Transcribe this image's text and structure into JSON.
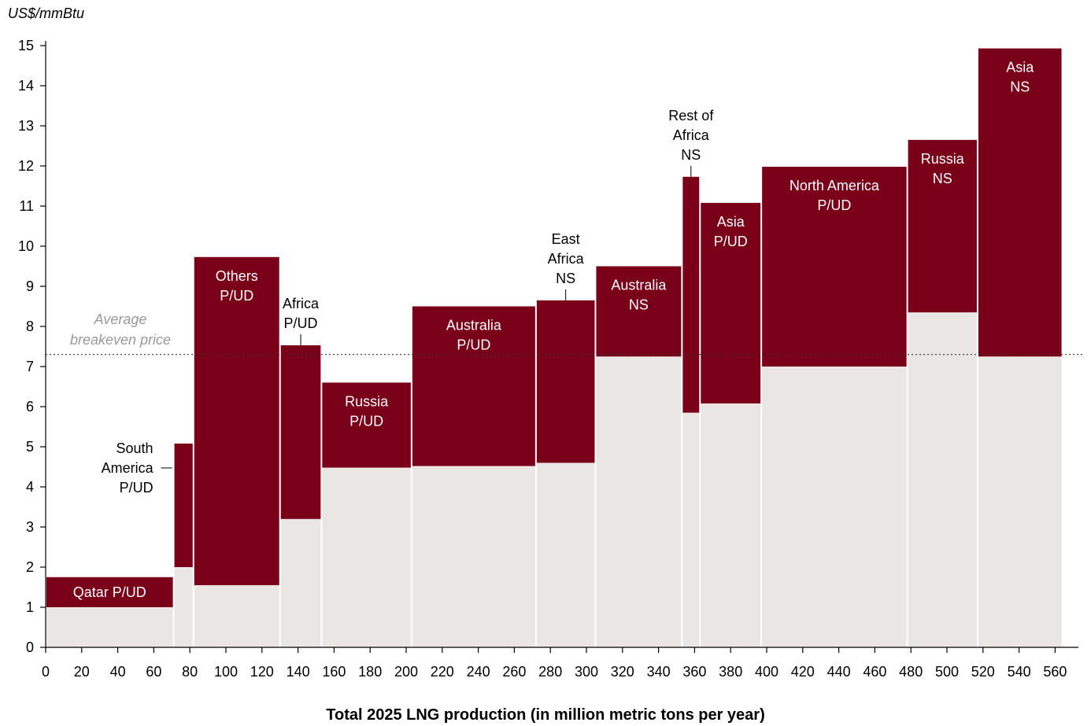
{
  "chart_data": {
    "type": "bar",
    "title": "",
    "ylabel": "US$/mmBtu",
    "xlabel": "Total 2025 LNG production (in million metric tons per year)",
    "xlim": [
      0,
      565
    ],
    "ylim": [
      0,
      15
    ],
    "xticks": [
      0,
      20,
      40,
      60,
      80,
      100,
      120,
      140,
      160,
      180,
      200,
      220,
      240,
      260,
      280,
      300,
      320,
      340,
      360,
      380,
      400,
      420,
      440,
      460,
      480,
      500,
      520,
      540,
      560
    ],
    "yticks": [
      0,
      1,
      2,
      3,
      4,
      5,
      6,
      7,
      8,
      9,
      10,
      11,
      12,
      13,
      14,
      15
    ],
    "grid": false,
    "reference_line": {
      "value": 7.3,
      "label_lines": [
        "Average",
        "breakeven price"
      ]
    },
    "colors": {
      "upper": "#7a0019",
      "lower": "#e9e6e3",
      "reference": "#333333",
      "reference_label": "#999999"
    },
    "bars": [
      {
        "x0": 0,
        "x1": 71,
        "base": 1.0,
        "top": 1.75,
        "label": [
          "Qatar P/UD"
        ],
        "label_pos": "inside"
      },
      {
        "x0": 71,
        "x1": 82,
        "base": 2.0,
        "top": 5.08,
        "label": [
          "South",
          "America",
          "P/UD"
        ],
        "label_pos": "left"
      },
      {
        "x0": 82,
        "x1": 130,
        "base": 1.55,
        "top": 9.73,
        "label": [
          "Others",
          "P/UD"
        ],
        "label_pos": "inside"
      },
      {
        "x0": 130,
        "x1": 153,
        "base": 3.2,
        "top": 7.53,
        "label": [
          "Africa",
          "P/UD"
        ],
        "label_pos": "above"
      },
      {
        "x0": 153,
        "x1": 203,
        "base": 4.48,
        "top": 6.6,
        "label": [
          "Russia",
          "P/UD"
        ],
        "label_pos": "inside"
      },
      {
        "x0": 203,
        "x1": 272,
        "base": 4.52,
        "top": 8.5,
        "label": [
          "Australia",
          "P/UD"
        ],
        "label_pos": "inside"
      },
      {
        "x0": 272,
        "x1": 305,
        "base": 4.6,
        "top": 8.65,
        "label": [
          "East",
          "Africa",
          "NS"
        ],
        "label_pos": "above"
      },
      {
        "x0": 305,
        "x1": 353,
        "base": 7.25,
        "top": 9.5,
        "label": [
          "Australia",
          "NS"
        ],
        "label_pos": "inside"
      },
      {
        "x0": 353,
        "x1": 363,
        "base": 5.85,
        "top": 11.73,
        "label": [
          "Rest of",
          "Africa",
          "NS"
        ],
        "label_pos": "above"
      },
      {
        "x0": 363,
        "x1": 397,
        "base": 6.08,
        "top": 11.08,
        "label": [
          "Asia",
          "P/UD"
        ],
        "label_pos": "inside"
      },
      {
        "x0": 397,
        "x1": 478,
        "base": 7.0,
        "top": 11.98,
        "label": [
          "North America",
          "P/UD"
        ],
        "label_pos": "inside"
      },
      {
        "x0": 478,
        "x1": 517,
        "base": 8.35,
        "top": 12.65,
        "label": [
          "Russia",
          "NS"
        ],
        "label_pos": "inside"
      },
      {
        "x0": 517,
        "x1": 564,
        "base": 7.25,
        "top": 14.93,
        "label": [
          "Asia",
          "NS"
        ],
        "label_pos": "inside"
      }
    ]
  }
}
